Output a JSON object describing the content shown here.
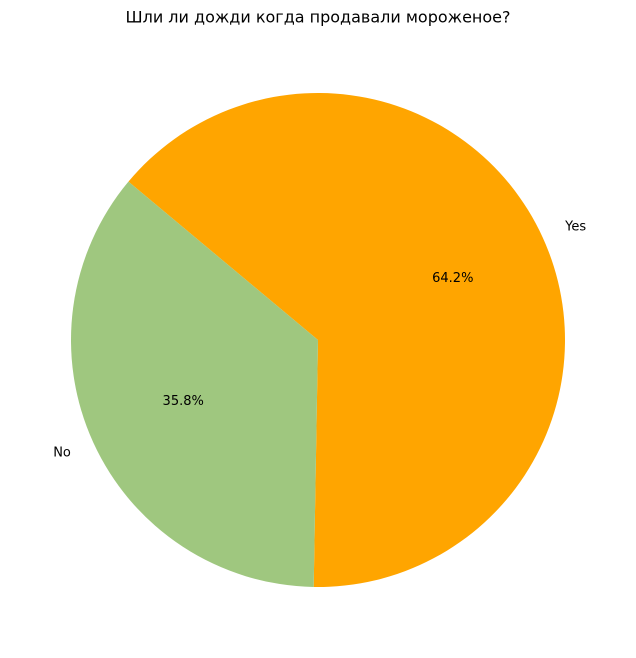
{
  "chart_data": {
    "type": "pie",
    "title": "Шли ли дожди когда продавали мороженое?",
    "categories": [
      "Yes",
      "No"
    ],
    "values": [
      64.2,
      35.8
    ],
    "value_labels": [
      "64.2%",
      "35.8%"
    ],
    "colors": [
      "#ffa500",
      "#9fc77f"
    ]
  }
}
